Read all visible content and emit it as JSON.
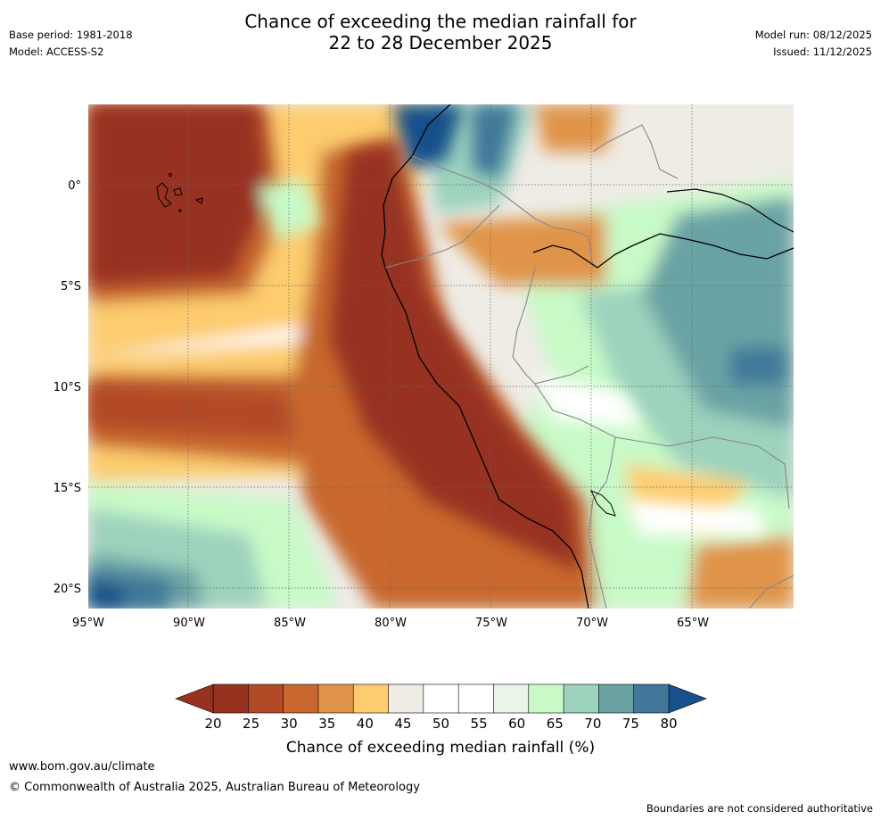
{
  "title_line1": "Chance of exceeding the median rainfall for",
  "title_line2": "22 to 28 December 2025",
  "base_period": "Base period: 1981-2018",
  "model": "Model: ACCESS-S2",
  "model_run": "Model run: 08/12/2025",
  "issued": "Issued: 11/12/2025",
  "map": {
    "lon_labels": [
      "95°W",
      "90°W",
      "85°W",
      "80°W",
      "75°W",
      "70°W",
      "65°W"
    ],
    "lon_values": [
      -95,
      -90,
      -85,
      -80,
      -75,
      -70,
      -65
    ],
    "lat_labels": [
      "0°",
      "5°S",
      "10°S",
      "15°S",
      "20°S"
    ],
    "lat_values": [
      0,
      -5,
      -10,
      -15,
      -20
    ],
    "extent": {
      "lon_min": -95,
      "lon_max": -60,
      "lat_min": -21,
      "lat_max": 4
    }
  },
  "colorbar": {
    "ticks": [
      "20",
      "25",
      "30",
      "35",
      "40",
      "45",
      "50",
      "55",
      "60",
      "65",
      "70",
      "75",
      "80"
    ],
    "colors": [
      "#973220",
      "#b24a27",
      "#c8672f",
      "#e0944a",
      "#fdcc6e",
      "#efece6",
      "#ffffff",
      "#ffffff",
      "#e8f5e8",
      "#c8fac8",
      "#9dd2bd",
      "#6ba3a5",
      "#41789a"
    ],
    "under_color": "#973220",
    "over_color": "#17508a",
    "title": "Chance of exceeding median rainfall (%)"
  },
  "footer": {
    "url": "www.bom.gov.au/climate",
    "copyright": "© Commonwealth of Australia 2025, Australian Bureau of Meteorology",
    "note": "Boundaries are not considered authoritative"
  }
}
